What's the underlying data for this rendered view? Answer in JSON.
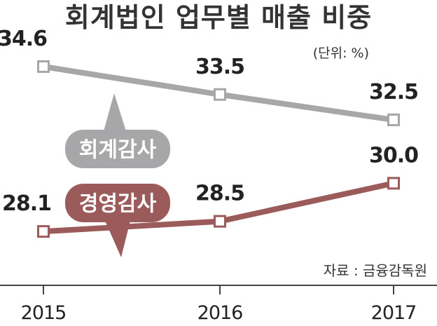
{
  "chart_data": {
    "type": "line",
    "title": "회계법인 업무별 매출 비중",
    "unit": "(단위: %)",
    "source": "자료 : 금융감독원",
    "x": [
      "2015",
      "2016",
      "2017"
    ],
    "series": [
      {
        "name": "회계감사",
        "values": [
          34.6,
          33.5,
          32.5
        ],
        "value_labels": [
          "34.6",
          "33.5",
          "32.5"
        ],
        "color": "#a7a7a9"
      },
      {
        "name": "경영감사",
        "values": [
          28.1,
          28.5,
          30.0
        ],
        "value_labels": [
          "28.1",
          "28.5",
          "30.0"
        ],
        "color": "#9c5b5b"
      }
    ],
    "grid": false,
    "legend": "inline-callouts"
  }
}
